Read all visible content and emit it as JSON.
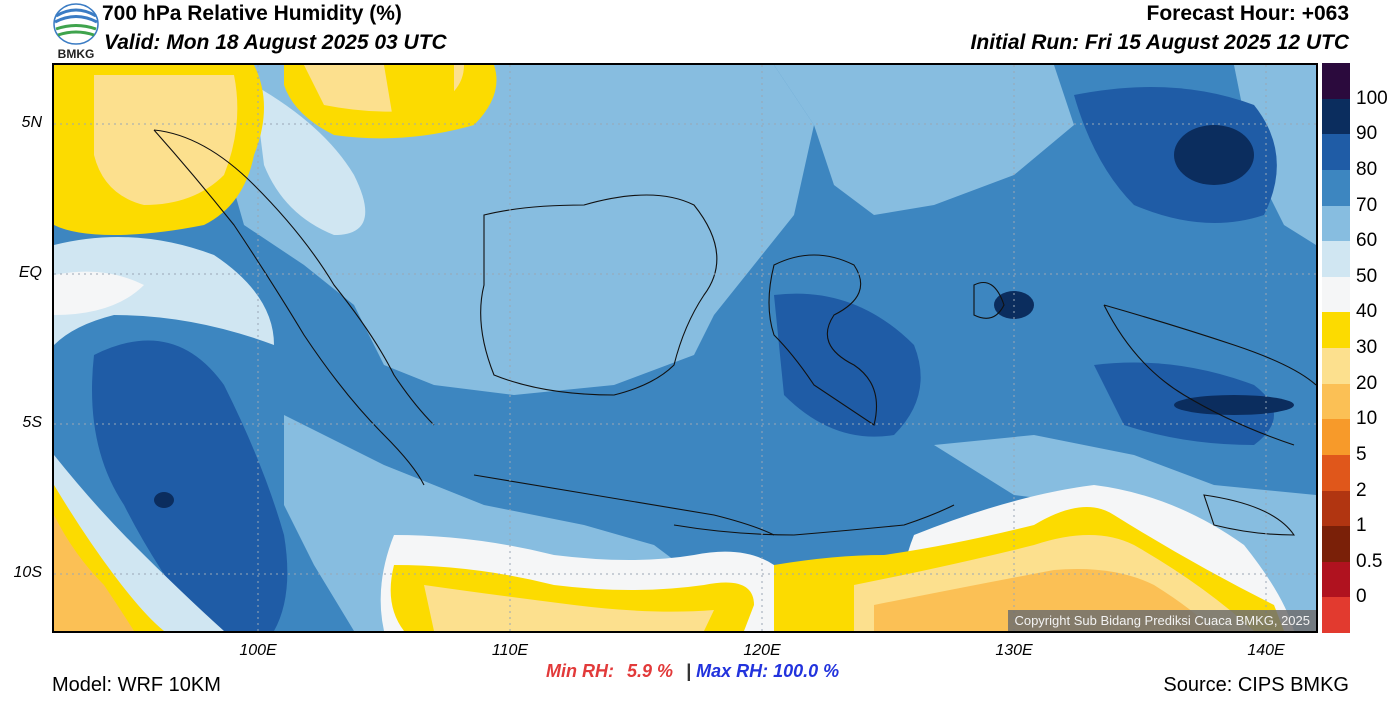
{
  "header": {
    "title": "700 hPa Relative Humidity (%)",
    "valid": "Valid: Mon 18 August 2025 03 UTC",
    "forecast_hour": "Forecast Hour: +063",
    "initial_run": "Initial Run: Fri 15 August 2025 12 UTC",
    "logo_text": "BMKG"
  },
  "axes": {
    "lat_labels": [
      "5N",
      "EQ",
      "5S",
      "10S"
    ],
    "lon_labels": [
      "100E",
      "110E",
      "120E",
      "130E",
      "140E"
    ]
  },
  "colorbar": {
    "labels": [
      "100",
      "90",
      "80",
      "70",
      "60",
      "50",
      "40",
      "30",
      "20",
      "10",
      "5",
      "2",
      "1",
      "0.5",
      "0"
    ],
    "colors": [
      "#2b0a3d",
      "#0b2d5e",
      "#1f5ca6",
      "#3d86c0",
      "#87bde0",
      "#d0e6f2",
      "#f5f6f7",
      "#fcdb00",
      "#fce08e",
      "#fbc055",
      "#f79a2a",
      "#e0571b",
      "#b13511",
      "#7a2008",
      "#b0121f",
      "#e23a2f"
    ]
  },
  "map": {
    "colors": {
      "deep_blue": "#0b2d5e",
      "dark_blue": "#1f5ca6",
      "mid_blue": "#3d86c0",
      "light_blue": "#87bde0",
      "pale_blue": "#d0e6f2",
      "white": "#f5f6f7",
      "yellow": "#fcdb00",
      "light_orange": "#fce08e",
      "orange": "#fbc055"
    }
  },
  "stats": {
    "min_label": "Min RH:",
    "min_value": "5.9 %",
    "separator": "|",
    "max_label": "Max RH: 100.0 %"
  },
  "footer": {
    "copyright": "Copyright Sub Bidang Prediksi Cuaca BMKG, 2025",
    "model": "Model: WRF 10KM",
    "source": "Source: CIPS BMKG"
  }
}
